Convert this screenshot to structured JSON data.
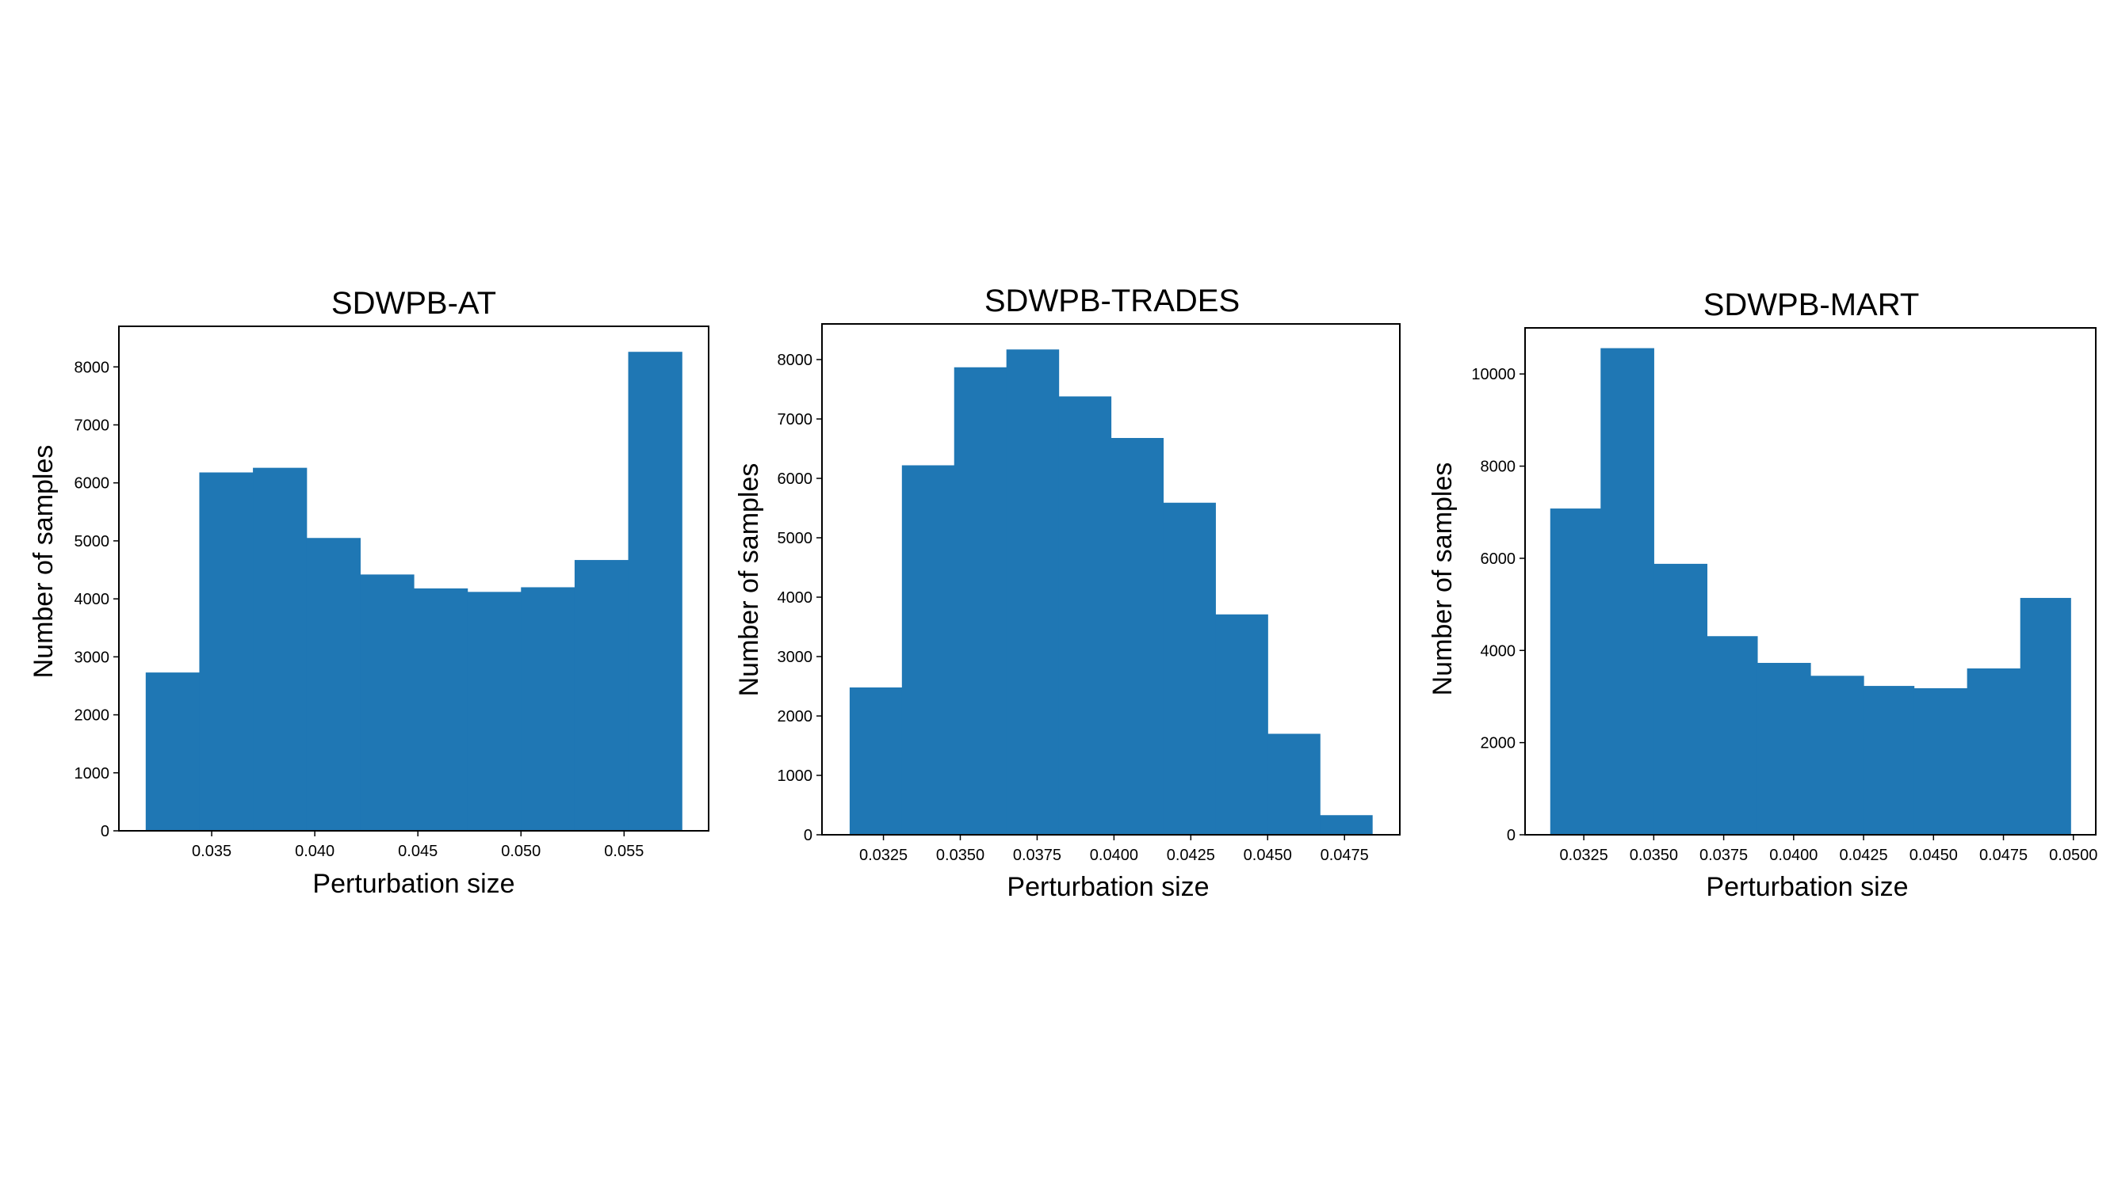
{
  "chart_data": [
    {
      "type": "bar",
      "title": "SDWPB-AT",
      "xlabel": "Perturbation size",
      "ylabel": "Number of samples",
      "bar_color": "#1f77b4",
      "bin_edges": [
        0.0318,
        0.0344,
        0.037,
        0.0396,
        0.0422,
        0.0448,
        0.0474,
        0.05,
        0.0526,
        0.0552,
        0.0578
      ],
      "values": [
        2730,
        6180,
        6260,
        5050,
        4420,
        4180,
        4120,
        4200,
        4670,
        8260
      ],
      "xlim": [
        0.0305,
        0.0591
      ],
      "ylim": [
        0,
        8700
      ],
      "xticks": [
        0.035,
        0.04,
        0.045,
        0.05,
        0.055
      ],
      "xtick_labels": [
        "0.035",
        "0.040",
        "0.045",
        "0.050",
        "0.055"
      ],
      "yticks": [
        0,
        1000,
        2000,
        3000,
        4000,
        5000,
        6000,
        7000,
        8000
      ],
      "ytick_labels": [
        "0",
        "1000",
        "2000",
        "3000",
        "4000",
        "5000",
        "6000",
        "7000",
        "8000"
      ],
      "grid": false
    },
    {
      "type": "bar",
      "title": "SDWPB-TRADES",
      "xlabel": "Perturbation size",
      "ylabel": "Number of samples",
      "bar_color": "#1f77b4",
      "bin_edges": [
        0.0314,
        0.0331,
        0.0348,
        0.0365,
        0.0382,
        0.0399,
        0.0416,
        0.0433,
        0.045,
        0.0467,
        0.0484
      ],
      "values": [
        2480,
        6220,
        7870,
        8170,
        7380,
        6680,
        5590,
        3710,
        1700,
        330
      ],
      "xlim": [
        0.0305,
        0.0493
      ],
      "ylim": [
        0,
        8600
      ],
      "xticks": [
        0.0325,
        0.035,
        0.0375,
        0.04,
        0.0425,
        0.045,
        0.0475
      ],
      "xtick_labels": [
        "0.0325",
        "0.0350",
        "0.0375",
        "0.0400",
        "0.0425",
        "0.0450",
        "0.0475"
      ],
      "yticks": [
        0,
        1000,
        2000,
        3000,
        4000,
        5000,
        6000,
        7000,
        8000
      ],
      "ytick_labels": [
        "0",
        "1000",
        "2000",
        "3000",
        "4000",
        "5000",
        "6000",
        "7000",
        "8000"
      ],
      "grid": false
    },
    {
      "type": "bar",
      "title": "SDWPB-MART",
      "xlabel": "Perturbation size",
      "ylabel": "Number of samples",
      "bar_color": "#1f77b4",
      "bin_edges": [
        0.0313,
        0.0331,
        0.035,
        0.0369,
        0.0387,
        0.0406,
        0.0425,
        0.0443,
        0.0462,
        0.0481,
        0.0499
      ],
      "values": [
        7080,
        10560,
        5880,
        4310,
        3730,
        3450,
        3230,
        3180,
        3610,
        5140
      ],
      "xlim": [
        0.0304,
        0.0508
      ],
      "ylim": [
        0,
        11000
      ],
      "xticks": [
        0.0325,
        0.035,
        0.0375,
        0.04,
        0.0425,
        0.045,
        0.0475,
        0.05
      ],
      "xtick_labels": [
        "0.0325",
        "0.0350",
        "0.0375",
        "0.0400",
        "0.0425",
        "0.0450",
        "0.0475",
        "0.0500"
      ],
      "yticks": [
        0,
        2000,
        4000,
        6000,
        8000,
        10000
      ],
      "ytick_labels": [
        "0",
        "2000",
        "4000",
        "6000",
        "8000",
        "10000"
      ],
      "grid": false
    }
  ]
}
